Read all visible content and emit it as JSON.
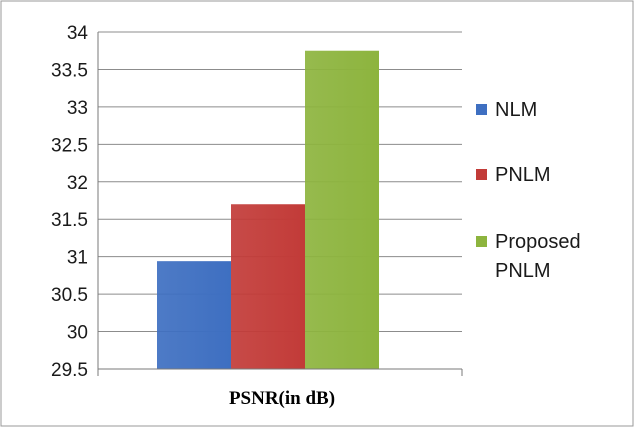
{
  "chart_data": {
    "type": "bar",
    "categories": [
      "PSNR(in dB)"
    ],
    "series": [
      {
        "name": "NLM",
        "values": [
          30.94
        ],
        "color": "#3e6fc1"
      },
      {
        "name": "PNLM",
        "values": [
          31.7
        ],
        "color": "#c23b38"
      },
      {
        "name": "Proposed PNLM",
        "values": [
          33.75
        ],
        "color": "#8db43e"
      }
    ],
    "ylim": [
      29.5,
      34
    ],
    "yticks": [
      "29.5",
      "30",
      "30.5",
      "31",
      "31.5",
      "32",
      "32.5",
      "33",
      "33.5",
      "34"
    ],
    "grid": true,
    "legend_position": "right",
    "legend_lines": [
      [
        "NLM"
      ],
      [
        "PNLM"
      ],
      [
        "Proposed",
        "PNLM"
      ]
    ],
    "title": "",
    "xlabel": "",
    "ylabel": ""
  }
}
